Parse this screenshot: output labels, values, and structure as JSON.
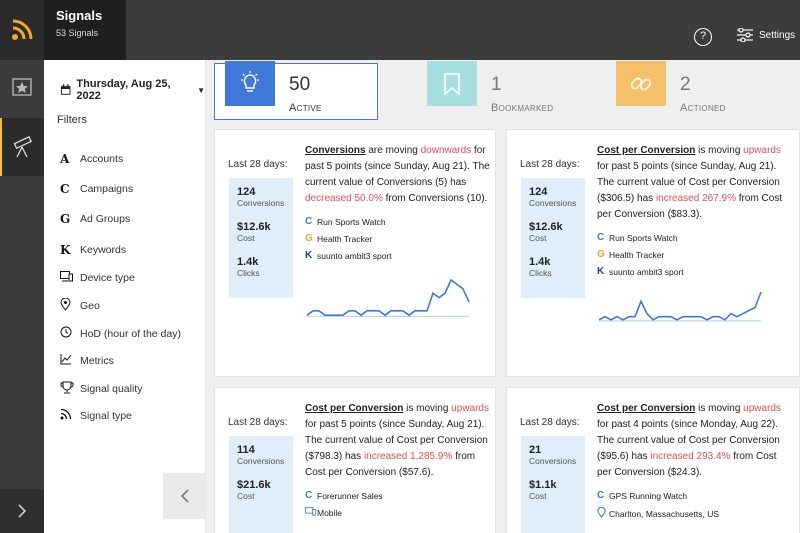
{
  "app": {
    "title": "Signals",
    "subtitle": "53 Signals"
  },
  "header": {
    "help_label": "?",
    "settings_label": "Settings"
  },
  "sidebar": {
    "date": "Thursday, Aug 25, 2022",
    "filters_title": "Filters",
    "items": [
      {
        "label": "Accounts",
        "icon": "A"
      },
      {
        "label": "Campaigns",
        "icon": "C"
      },
      {
        "label": "Ad Groups",
        "icon": "G"
      },
      {
        "label": "Keywords",
        "icon": "K"
      },
      {
        "label": "Device type",
        "icon": "device-icon"
      },
      {
        "label": "Geo",
        "icon": "pin-icon"
      },
      {
        "label": "HoD (hour of the day)",
        "icon": "clock-icon"
      },
      {
        "label": "Metrics",
        "icon": "chart-icon"
      },
      {
        "label": "Signal quality",
        "icon": "trophy-icon"
      },
      {
        "label": "Signal type",
        "icon": "signal-icon"
      }
    ]
  },
  "stats": [
    {
      "count": "50",
      "label": "Active",
      "color": "#3f7ad9"
    },
    {
      "count": "1",
      "label": "Bookmarked",
      "color": "#a7dede"
    },
    {
      "count": "2",
      "label": "Actioned",
      "color": "#f6c06b"
    }
  ],
  "cards": [
    {
      "range": "Last 28 days:",
      "metrics": [
        {
          "value": "124",
          "label": "Conversions"
        },
        {
          "value": "$12.6k",
          "label": "Cost"
        },
        {
          "value": "1.4k",
          "label": "Clicks"
        }
      ],
      "metric_name": "Conversions",
      "text_1": " are moving ",
      "direction": "downwards",
      "text_2": " for past 5 points (since Sunday, Aug 21). The current value of Conversions (5) has ",
      "change": "decreased 50.0%",
      "text_3": " from Conversions (10).",
      "tags": [
        {
          "icon": "C",
          "label": "Run Sports Watch"
        },
        {
          "icon": "G",
          "label": "Health Tracker"
        },
        {
          "icon": "K",
          "label": "suunto ambit3 sport"
        }
      ]
    },
    {
      "range": "Last 28 days:",
      "metrics": [
        {
          "value": "124",
          "label": "Conversions"
        },
        {
          "value": "$12.6k",
          "label": "Cost"
        },
        {
          "value": "1.4k",
          "label": "Clicks"
        }
      ],
      "metric_name": "Cost per Conversion",
      "text_1": " is moving ",
      "direction": "upwards",
      "text_2": " for past 5 points (since Sunday, Aug 21). The current value of Cost per Conversion ($306.5) has ",
      "change": "increased 267.9%",
      "text_3": " from Cost per Conversion ($83.3).",
      "tags": [
        {
          "icon": "C",
          "label": "Run Sports Watch"
        },
        {
          "icon": "G",
          "label": "Health Tracker"
        },
        {
          "icon": "K",
          "label": "suunto ambit3 sport"
        }
      ]
    },
    {
      "range": "Last 28 days:",
      "metrics": [
        {
          "value": "114",
          "label": "Conversions"
        },
        {
          "value": "$21.6k",
          "label": "Cost"
        }
      ],
      "metric_name": "Cost per Conversion",
      "text_1": " is moving ",
      "direction": "upwards",
      "text_2": " for past 5 points (since Sunday, Aug 21). The current value of Cost per Conversion ($798.3) has ",
      "change": "increased 1,285.9%",
      "text_3": " from Cost per Conversion ($57.6).",
      "tags": [
        {
          "icon": "C",
          "label": "Forerunner Sales"
        },
        {
          "icon": "device-icon",
          "label": "Mobile"
        }
      ]
    },
    {
      "range": "Last 28 days:",
      "metrics": [
        {
          "value": "21",
          "label": "Conversions"
        },
        {
          "value": "$1.1k",
          "label": "Cost"
        }
      ],
      "metric_name": "Cost per Conversion",
      "text_1": " is moving ",
      "direction": "upwards",
      "text_2": " for past 4 points (since Monday, Aug 22). The current value of Cost per Conversion ($95.6) has ",
      "change": "increased 293.4%",
      "text_3": " from Cost per Conversion ($24.3).",
      "tags": [
        {
          "icon": "C",
          "label": "GPS Running Watch"
        },
        {
          "icon": "pin-icon",
          "label": "Charlton, Massachusetts, US"
        }
      ]
    }
  ],
  "sparklines": [
    [
      2,
      3,
      3,
      2,
      2,
      2,
      2,
      3,
      3,
      2,
      3,
      3,
      3,
      2,
      3,
      3,
      3,
      2,
      3,
      3,
      3,
      7,
      6,
      7,
      10,
      9,
      8,
      5
    ],
    [
      2,
      3,
      2,
      3,
      2,
      3,
      3,
      8,
      4,
      2,
      3,
      3,
      3,
      2,
      3,
      3,
      3,
      3,
      2,
      3,
      3,
      2,
      4,
      3,
      4,
      5,
      6,
      11
    ]
  ],
  "colors": {
    "accent": "#3f7ad9",
    "sidebar_highlight": "#f6c232",
    "up_down": "#e05050",
    "metric_bg": "#dfeefa",
    "spark": "#3f7ad9"
  }
}
